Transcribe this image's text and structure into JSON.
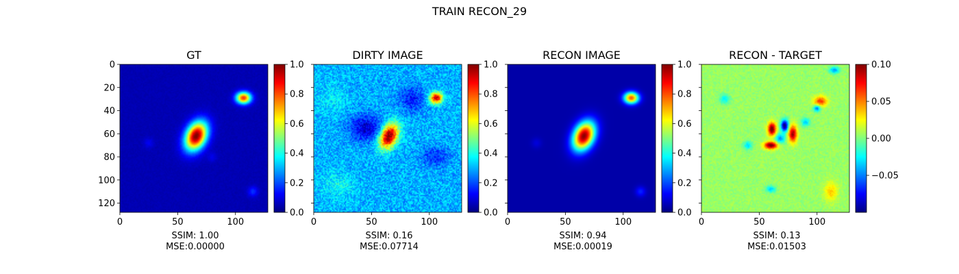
{
  "figure": {
    "title": "TRAIN RECON_29"
  },
  "chart_data": [
    {
      "type": "heatmap",
      "title": "GT",
      "colormap": "jet",
      "image_size": [
        128,
        128
      ],
      "extent": [
        0,
        128,
        0,
        128
      ],
      "x_ticks": [
        "0",
        "50",
        "100"
      ],
      "x_tick_values": [
        0,
        50,
        100
      ],
      "y_ticks": [
        "0",
        "20",
        "40",
        "60",
        "80",
        "100",
        "120"
      ],
      "y_tick_values": [
        0,
        20,
        40,
        60,
        80,
        100,
        120
      ],
      "show_y_ticklabels": true,
      "clim": [
        0.0,
        1.0
      ],
      "colorbar_ticks": [
        "0.0",
        "0.2",
        "0.4",
        "0.6",
        "0.8",
        "1.0"
      ],
      "colorbar_tick_values": [
        0.0,
        0.2,
        0.4,
        0.6,
        0.8,
        1.0
      ],
      "background_value": 0.05,
      "noise_amplitude": 0.01,
      "blobs": [
        {
          "x": 66,
          "y": 62,
          "sx": 6,
          "sy": 9,
          "rot": 25,
          "amp": 0.96
        },
        {
          "x": 107,
          "y": 29,
          "sx": 4.5,
          "sy": 3.5,
          "rot": 0,
          "amp": 0.78
        },
        {
          "x": 115,
          "y": 110,
          "sx": 3,
          "sy": 3,
          "rot": 0,
          "amp": 0.12
        },
        {
          "x": 25,
          "y": 68,
          "sx": 3,
          "sy": 3,
          "rot": 0,
          "amp": 0.06
        },
        {
          "x": 80,
          "y": 80,
          "sx": 3,
          "sy": 3,
          "rot": 0,
          "amp": 0.05
        }
      ],
      "caption": [
        "SSIM: 1.00",
        "MSE:0.00000"
      ]
    },
    {
      "type": "heatmap",
      "title": "DIRTY IMAGE",
      "colormap": "jet",
      "image_size": [
        128,
        128
      ],
      "extent": [
        0,
        128,
        0,
        128
      ],
      "x_ticks": [
        "0",
        "50",
        "100"
      ],
      "x_tick_values": [
        0,
        50,
        100
      ],
      "y_tick_values": [
        0,
        20,
        40,
        60,
        80,
        100,
        120
      ],
      "show_y_ticklabels": false,
      "clim": [
        0.0,
        1.0
      ],
      "colorbar_ticks": [
        "0.0",
        "0.2",
        "0.4",
        "0.6",
        "0.8",
        "1.0"
      ],
      "colorbar_tick_values": [
        0.0,
        0.2,
        0.4,
        0.6,
        0.8,
        1.0
      ],
      "background_value": 0.3,
      "noise_amplitude": 0.08,
      "blobs": [
        {
          "x": 65,
          "y": 62,
          "sx": 5,
          "sy": 8,
          "rot": 25,
          "amp": 0.72
        },
        {
          "x": 106,
          "y": 29,
          "sx": 4,
          "sy": 3.5,
          "rot": 0,
          "amp": 0.62
        },
        {
          "x": 45,
          "y": 55,
          "sx": 10,
          "sy": 8,
          "rot": 0,
          "amp": -0.22
        },
        {
          "x": 85,
          "y": 30,
          "sx": 8,
          "sy": 8,
          "rot": 0,
          "amp": -0.15
        },
        {
          "x": 105,
          "y": 80,
          "sx": 8,
          "sy": 6,
          "rot": 0,
          "amp": -0.14
        },
        {
          "x": 20,
          "y": 105,
          "sx": 10,
          "sy": 8,
          "rot": 0,
          "amp": 0.08
        },
        {
          "x": 15,
          "y": 30,
          "sx": 10,
          "sy": 8,
          "rot": 0,
          "amp": 0.06
        }
      ],
      "caption": [
        "SSIM: 0.16",
        "MSE:0.07714"
      ]
    },
    {
      "type": "heatmap",
      "title": "RECON IMAGE",
      "colormap": "jet",
      "image_size": [
        128,
        128
      ],
      "extent": [
        0,
        128,
        0,
        128
      ],
      "x_ticks": [
        "0",
        "50",
        "100"
      ],
      "x_tick_values": [
        0,
        50,
        100
      ],
      "y_tick_values": [
        0,
        20,
        40,
        60,
        80,
        100,
        120
      ],
      "show_y_ticklabels": false,
      "clim": [
        0.0,
        1.0
      ],
      "colorbar_ticks": [
        "0.0",
        "0.2",
        "0.4",
        "0.6",
        "0.8",
        "1.0"
      ],
      "colorbar_tick_values": [
        0.0,
        0.2,
        0.4,
        0.6,
        0.8,
        1.0
      ],
      "background_value": 0.04,
      "noise_amplitude": 0.0,
      "blobs": [
        {
          "x": 66,
          "y": 62,
          "sx": 6,
          "sy": 9,
          "rot": 25,
          "amp": 0.95
        },
        {
          "x": 107,
          "y": 29,
          "sx": 4.5,
          "sy": 3.5,
          "rot": 0,
          "amp": 0.75
        },
        {
          "x": 115,
          "y": 110,
          "sx": 3,
          "sy": 3,
          "rot": 0,
          "amp": 0.12
        },
        {
          "x": 25,
          "y": 68,
          "sx": 3,
          "sy": 3,
          "rot": 0,
          "amp": 0.05
        }
      ],
      "caption": [
        "SSIM: 0.94",
        "MSE:0.00019"
      ]
    },
    {
      "type": "heatmap",
      "title": "RECON - TARGET",
      "colormap": "jet",
      "image_size": [
        128,
        128
      ],
      "extent": [
        0,
        128,
        0,
        128
      ],
      "x_ticks": [
        "0",
        "50",
        "100"
      ],
      "x_tick_values": [
        0,
        50,
        100
      ],
      "y_tick_values": [
        0,
        20,
        40,
        60,
        80,
        100,
        120
      ],
      "show_y_ticklabels": false,
      "clim": [
        -0.1,
        0.1
      ],
      "colorbar_ticks": [
        "0.10",
        "0.05",
        "0.00",
        "−0.05"
      ],
      "colorbar_tick_values": [
        0.1,
        0.05,
        0.0,
        -0.05
      ],
      "background_value": 0.005,
      "noise_amplitude": 0.006,
      "blobs": [
        {
          "x": 61,
          "y": 56,
          "sx": 2.5,
          "sy": 4,
          "rot": 0,
          "amp": 0.1
        },
        {
          "x": 72,
          "y": 53,
          "sx": 2.2,
          "sy": 3.5,
          "rot": 0,
          "amp": -0.11
        },
        {
          "x": 79,
          "y": 60,
          "sx": 2.5,
          "sy": 5,
          "rot": 0,
          "amp": 0.09
        },
        {
          "x": 60,
          "y": 70,
          "sx": 4,
          "sy": 2.2,
          "rot": 0,
          "amp": 0.1
        },
        {
          "x": 68,
          "y": 64,
          "sx": 3,
          "sy": 3,
          "rot": 0,
          "amp": -0.05
        },
        {
          "x": 103,
          "y": 32,
          "sx": 4,
          "sy": 3,
          "rot": 0,
          "amp": 0.06
        },
        {
          "x": 100,
          "y": 38,
          "sx": 2,
          "sy": 2,
          "rot": 0,
          "amp": -0.06
        },
        {
          "x": 115,
          "y": 5,
          "sx": 3,
          "sy": 2,
          "rot": 0,
          "amp": -0.05
        },
        {
          "x": 112,
          "y": 110,
          "sx": 4,
          "sy": 6,
          "rot": 0,
          "amp": 0.03
        },
        {
          "x": 60,
          "y": 108,
          "sx": 3,
          "sy": 2,
          "rot": 0,
          "amp": -0.04
        },
        {
          "x": 40,
          "y": 70,
          "sx": 2.5,
          "sy": 2.5,
          "rot": 0,
          "amp": -0.035
        },
        {
          "x": 20,
          "y": 30,
          "sx": 3,
          "sy": 3,
          "rot": 0,
          "amp": -0.03
        },
        {
          "x": 90,
          "y": 50,
          "sx": 2.5,
          "sy": 2.5,
          "rot": 0,
          "amp": -0.04
        }
      ],
      "caption": [
        "SSIM: 0.13",
        "MSE:0.01503"
      ]
    }
  ]
}
